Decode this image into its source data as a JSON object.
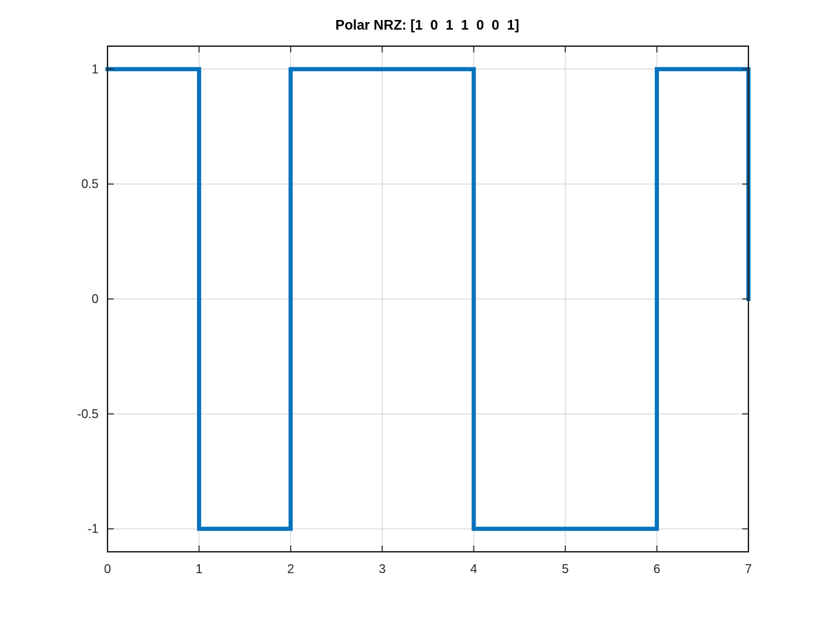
{
  "chart_data": {
    "type": "line",
    "title": "Polar NRZ: [1  0  1  1  0  0  1]",
    "xlabel": "",
    "ylabel": "",
    "xlim": [
      0,
      7
    ],
    "ylim": [
      -1.1,
      1.1
    ],
    "grid": true,
    "x_ticks": [
      0,
      1,
      2,
      3,
      4,
      5,
      6,
      7
    ],
    "x_tick_labels": [
      "0",
      "1",
      "2",
      "3",
      "4",
      "5",
      "6",
      "7"
    ],
    "y_ticks": [
      1,
      0.5,
      0,
      -0.5,
      -1
    ],
    "y_tick_labels": [
      "1",
      "0.5",
      "0",
      "-0.5",
      "-1"
    ],
    "series": [
      {
        "color": "#0072bd",
        "style": "step",
        "x": [
          0,
          1,
          1,
          2,
          2,
          4,
          4,
          6,
          6,
          7,
          7
        ],
        "y": [
          1,
          1,
          -1,
          -1,
          1,
          1,
          -1,
          -1,
          1,
          1,
          0
        ]
      }
    ]
  }
}
